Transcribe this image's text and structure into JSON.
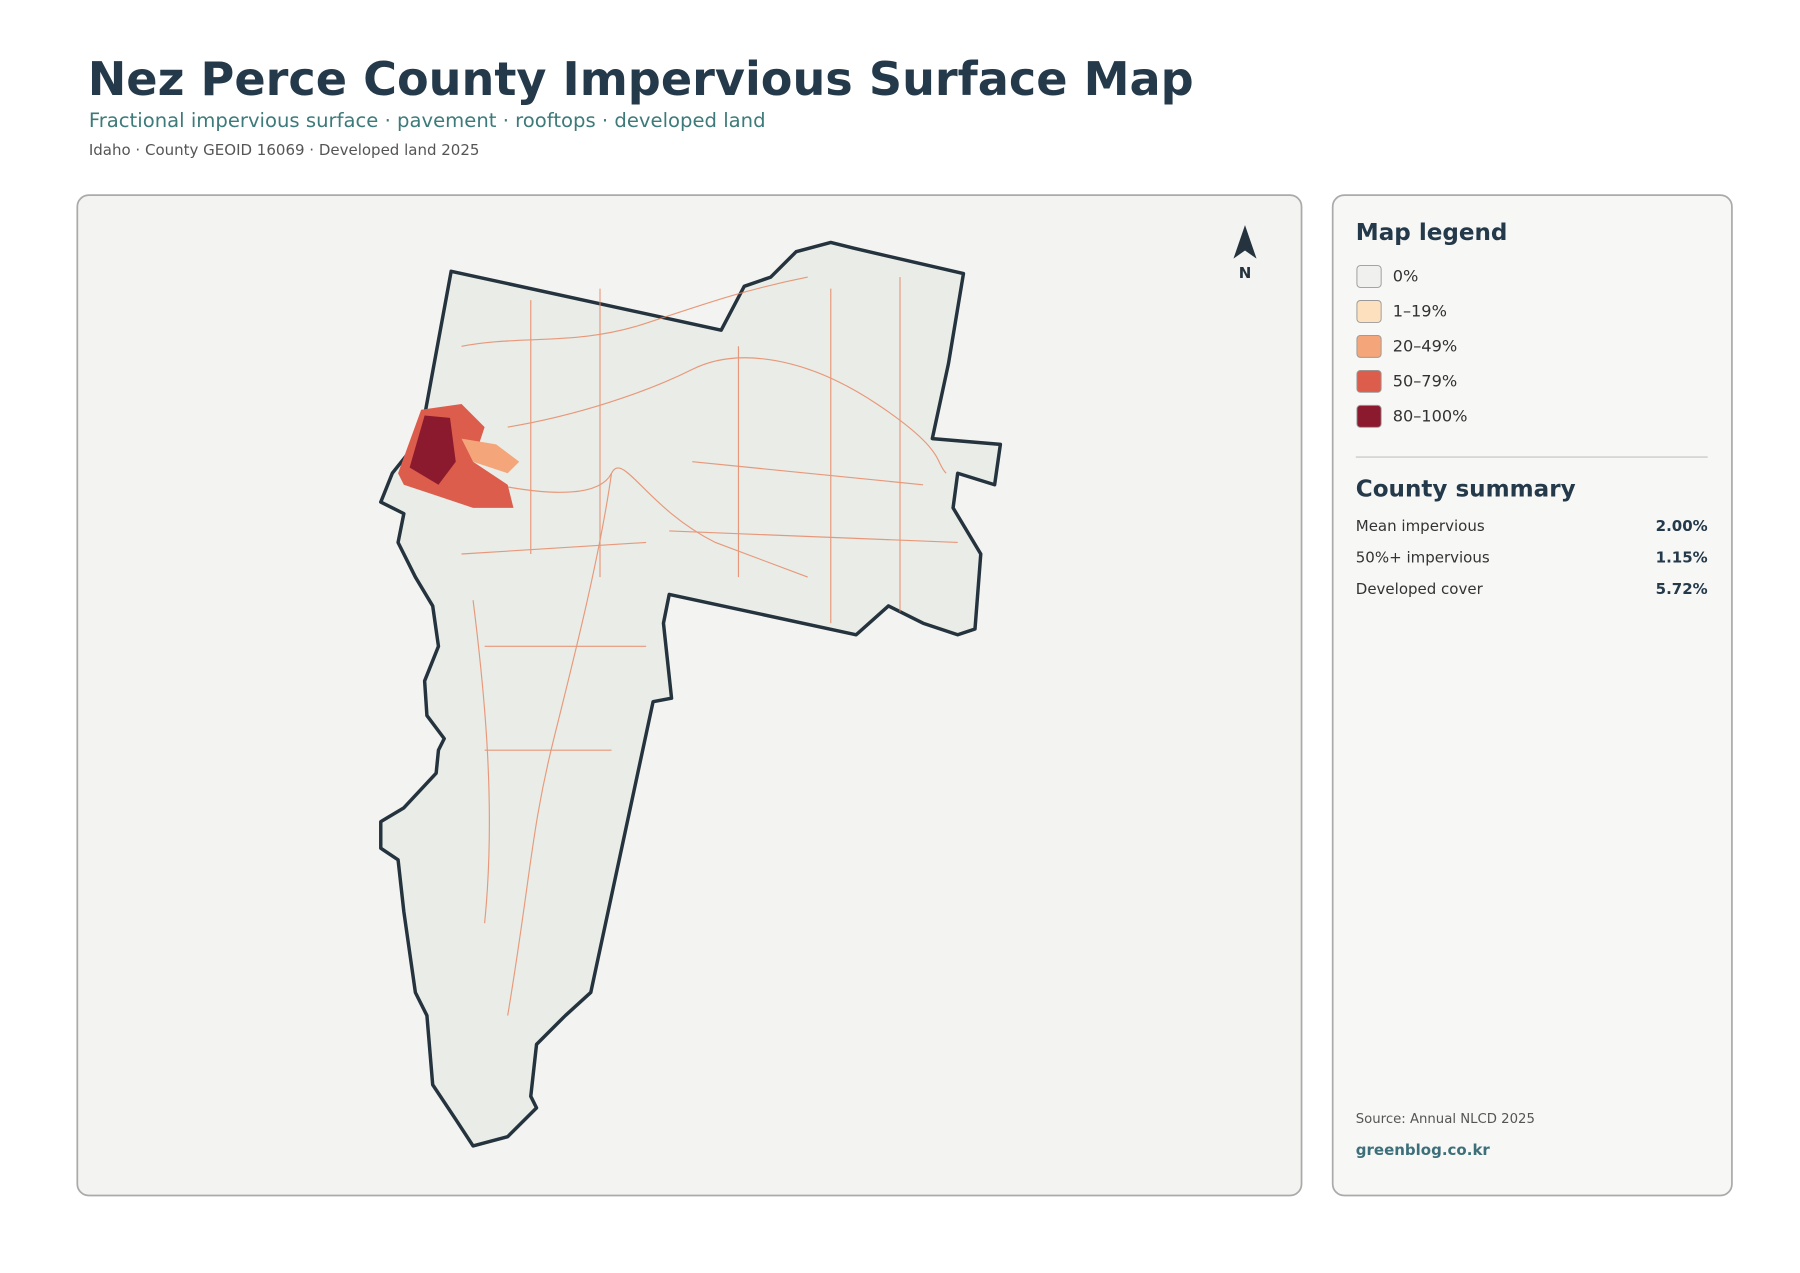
{
  "header": {
    "title": "Nez Perce County Impervious Surface Map",
    "subtitle": "Fractional impervious surface · pavement · rooftops · developed land",
    "meta": "Idaho · County GEOID 16069 · Developed land 2025"
  },
  "map": {
    "north_label": "N"
  },
  "legend": {
    "title": "Map legend",
    "items": [
      {
        "label": "0%",
        "color": "#f0f0ee"
      },
      {
        "label": "1–19%",
        "color": "#fde0bd"
      },
      {
        "label": "20–49%",
        "color": "#f4a57a"
      },
      {
        "label": "50–79%",
        "color": "#dc5d4b"
      },
      {
        "label": "80–100%",
        "color": "#8c1a2e"
      }
    ]
  },
  "summary": {
    "title": "County summary",
    "rows": [
      {
        "label": "Mean impervious",
        "value": "2.00%"
      },
      {
        "label": "50%+ impervious",
        "value": "1.15%"
      },
      {
        "label": "Developed cover",
        "value": "5.72%"
      }
    ]
  },
  "footer": {
    "source": "Source: Annual NLCD 2025",
    "credit": "greenblog.co.kr"
  }
}
